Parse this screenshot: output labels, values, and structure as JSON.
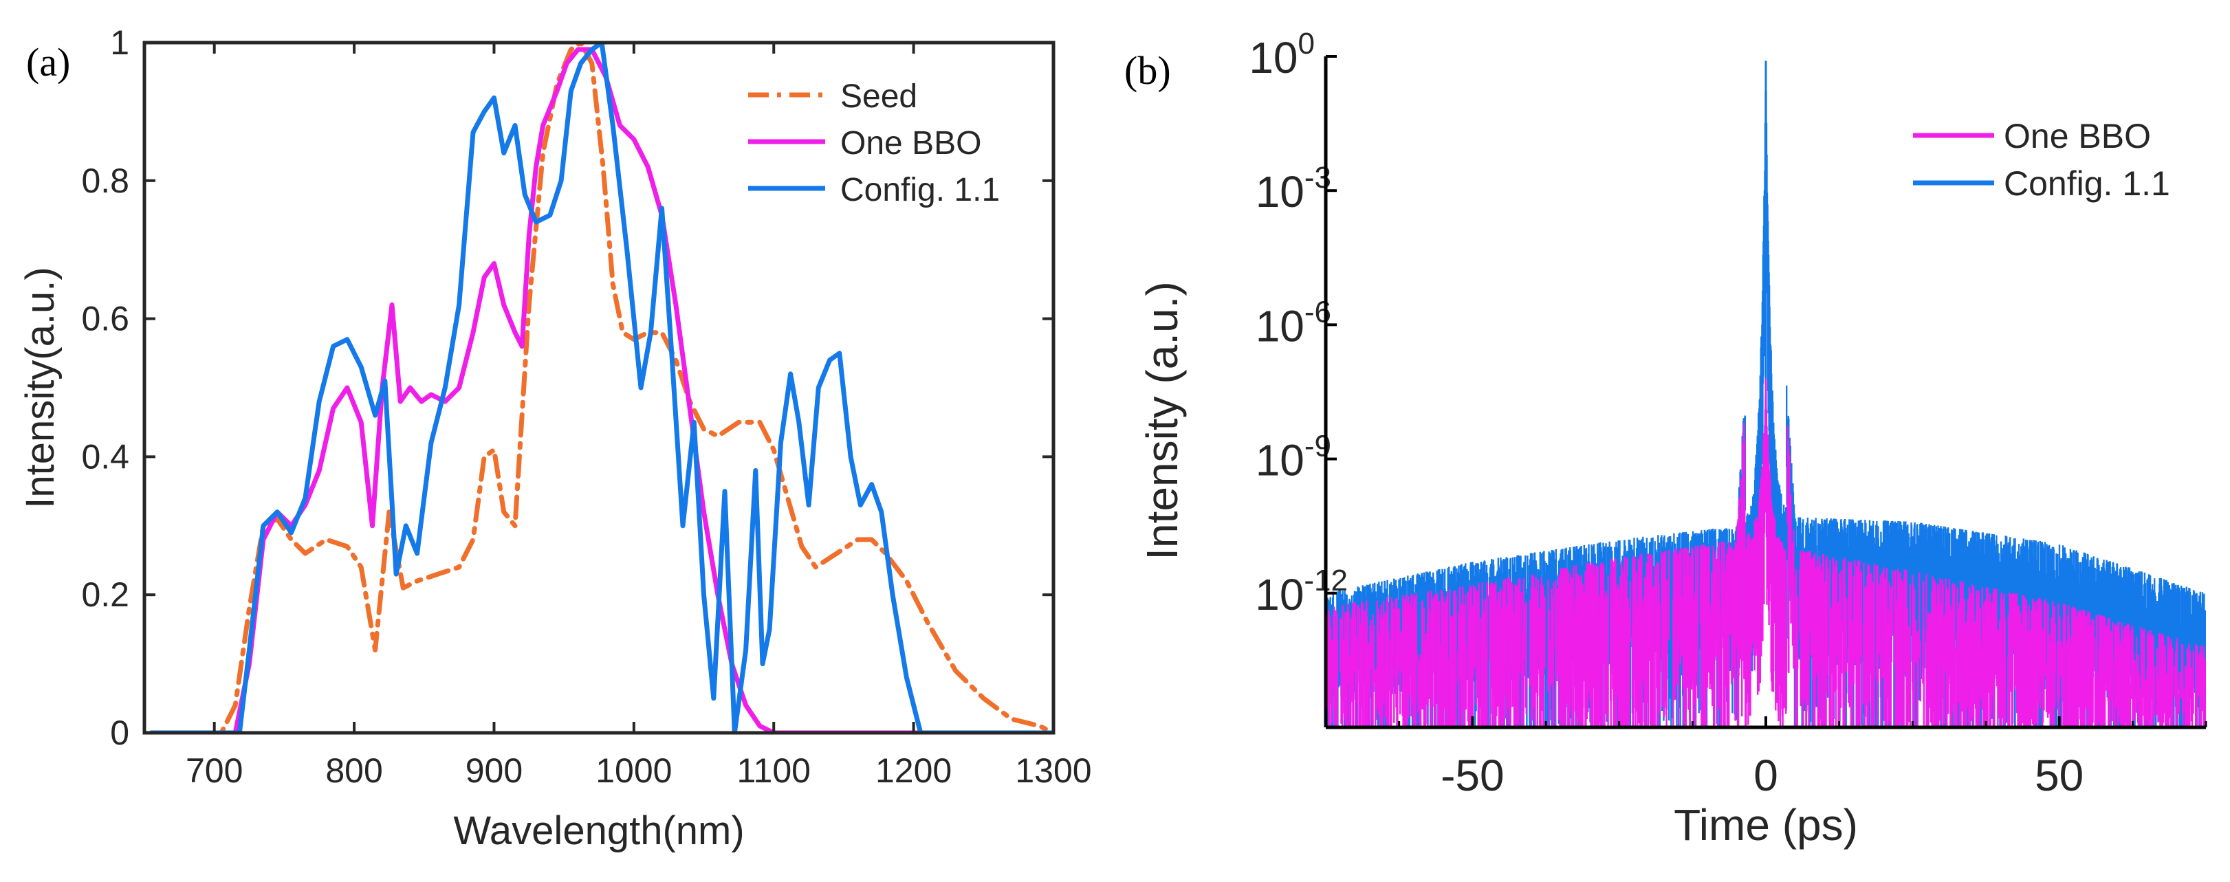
{
  "chart_data": [
    {
      "panel_label": "(a)",
      "type": "line",
      "title": "",
      "xlabel": "Wavelength(nm)",
      "ylabel": "Intensity(a.u.)",
      "xlim": [
        650,
        1300
      ],
      "ylim": [
        0,
        1
      ],
      "xticks": [
        700,
        800,
        900,
        1000,
        1100,
        1200,
        1300
      ],
      "yticks": [
        0,
        0.2,
        0.4,
        0.6,
        0.8,
        1
      ],
      "ytick_labels": [
        "0",
        "0.2",
        "0.4",
        "0.6",
        "0.8",
        "1"
      ],
      "legend": "top-right",
      "series": [
        {
          "name": "Seed",
          "color": "#f06f2b",
          "style": "dashdot",
          "x": [
            655,
            705,
            715,
            725,
            735,
            745,
            755,
            765,
            780,
            795,
            805,
            815,
            825,
            835,
            845,
            860,
            875,
            885,
            893,
            900,
            907,
            915,
            925,
            935,
            945,
            955,
            962,
            970,
            978,
            985,
            992,
            1000,
            1010,
            1020,
            1030,
            1040,
            1050,
            1060,
            1075,
            1090,
            1100,
            1110,
            1120,
            1130,
            1145,
            1160,
            1170,
            1180,
            1195,
            1210,
            1230,
            1250,
            1270,
            1290,
            1300
          ],
          "y": [
            0,
            0,
            0.04,
            0.18,
            0.3,
            0.31,
            0.28,
            0.26,
            0.28,
            0.27,
            0.24,
            0.12,
            0.32,
            0.21,
            0.22,
            0.23,
            0.24,
            0.28,
            0.4,
            0.41,
            0.32,
            0.3,
            0.62,
            0.84,
            0.94,
            0.99,
            1.0,
            0.97,
            0.82,
            0.65,
            0.58,
            0.57,
            0.58,
            0.58,
            0.54,
            0.48,
            0.44,
            0.43,
            0.45,
            0.45,
            0.41,
            0.34,
            0.27,
            0.24,
            0.26,
            0.28,
            0.28,
            0.26,
            0.22,
            0.16,
            0.09,
            0.05,
            0.02,
            0.01,
            0.0
          ]
        },
        {
          "name": "One BBO",
          "color": "#ef1ee8",
          "style": "solid",
          "x": [
            655,
            715,
            725,
            735,
            745,
            755,
            765,
            775,
            785,
            795,
            805,
            813,
            820,
            827,
            833,
            840,
            848,
            855,
            865,
            875,
            885,
            893,
            900,
            907,
            915,
            920,
            925,
            930,
            935,
            945,
            952,
            960,
            970,
            980,
            990,
            1000,
            1010,
            1020,
            1030,
            1040,
            1050,
            1060,
            1070,
            1080,
            1090,
            1100,
            1300
          ],
          "y": [
            0,
            0,
            0.1,
            0.28,
            0.32,
            0.3,
            0.33,
            0.38,
            0.47,
            0.5,
            0.45,
            0.3,
            0.5,
            0.62,
            0.48,
            0.5,
            0.48,
            0.49,
            0.48,
            0.5,
            0.58,
            0.66,
            0.68,
            0.62,
            0.58,
            0.56,
            0.72,
            0.82,
            0.88,
            0.93,
            0.97,
            0.99,
            0.99,
            0.95,
            0.88,
            0.86,
            0.82,
            0.75,
            0.62,
            0.47,
            0.32,
            0.2,
            0.1,
            0.04,
            0.01,
            0.0,
            0.0
          ]
        },
        {
          "name": "Config. 1.1",
          "color": "#1479e9",
          "style": "solid",
          "x": [
            655,
            718,
            725,
            735,
            745,
            755,
            765,
            775,
            785,
            795,
            805,
            815,
            822,
            830,
            837,
            845,
            855,
            865,
            875,
            885,
            893,
            900,
            907,
            915,
            922,
            930,
            940,
            948,
            955,
            962,
            970,
            977,
            985,
            995,
            1005,
            1012,
            1020,
            1027,
            1035,
            1043,
            1050,
            1057,
            1065,
            1072,
            1080,
            1087,
            1092,
            1097,
            1105,
            1112,
            1118,
            1125,
            1132,
            1140,
            1147,
            1155,
            1162,
            1170,
            1177,
            1185,
            1195,
            1205,
            1300
          ],
          "y": [
            0,
            0,
            0.12,
            0.3,
            0.32,
            0.29,
            0.34,
            0.48,
            0.56,
            0.57,
            0.53,
            0.46,
            0.51,
            0.23,
            0.3,
            0.26,
            0.42,
            0.5,
            0.62,
            0.87,
            0.9,
            0.92,
            0.84,
            0.88,
            0.78,
            0.74,
            0.75,
            0.8,
            0.93,
            0.97,
            0.99,
            1.0,
            0.88,
            0.7,
            0.5,
            0.58,
            0.76,
            0.55,
            0.3,
            0.45,
            0.2,
            0.05,
            0.35,
            0.0,
            0.12,
            0.38,
            0.1,
            0.15,
            0.42,
            0.52,
            0.45,
            0.33,
            0.5,
            0.54,
            0.55,
            0.4,
            0.33,
            0.36,
            0.32,
            0.2,
            0.08,
            0.0,
            0.0
          ]
        }
      ]
    },
    {
      "panel_label": "(b)",
      "type": "line",
      "title": "",
      "xlabel": "Time (ps)",
      "ylabel": "Intensity (a.u.)",
      "xlim": [
        -75,
        75
      ],
      "ylim_log10": [
        -15,
        0
      ],
      "xticks": [
        -50,
        0,
        50
      ],
      "yticks_log10": [
        0,
        -3,
        -6,
        -9,
        -12
      ],
      "ytick_mantissa": "10",
      "yscale": "log",
      "legend": "top-right",
      "series": [
        {
          "name": "One BBO",
          "color": "#ef1ee8",
          "noise_x": [
            -75,
            -50,
            -25,
            -5,
            0,
            5,
            25,
            50,
            75
          ],
          "noise_log10_max": [
            -12.3,
            -11.8,
            -11.2,
            -10.8,
            -0.3,
            -11.0,
            -11.5,
            -12.2,
            -13.2
          ],
          "noise_log10_min": [
            -15,
            -15,
            -15,
            -14.5,
            -6,
            -14.5,
            -15,
            -15,
            -15
          ],
          "peak": {
            "x": 0,
            "log10": -7.2
          }
        },
        {
          "name": "Config. 1.1",
          "color": "#1479e9",
          "noise_x": [
            -75,
            -50,
            -25,
            -5,
            0,
            5,
            25,
            50,
            75
          ],
          "noise_log10_max": [
            -12.0,
            -11.3,
            -10.8,
            -10.5,
            -0.2,
            -10.3,
            -10.4,
            -10.9,
            -12.0
          ],
          "noise_log10_min": [
            -14.5,
            -14.0,
            -13.8,
            -13.0,
            -5.5,
            -13.5,
            -14.0,
            -14.2,
            -14.6
          ],
          "peak": {
            "x": 0,
            "log10": -0.1
          }
        }
      ]
    }
  ]
}
